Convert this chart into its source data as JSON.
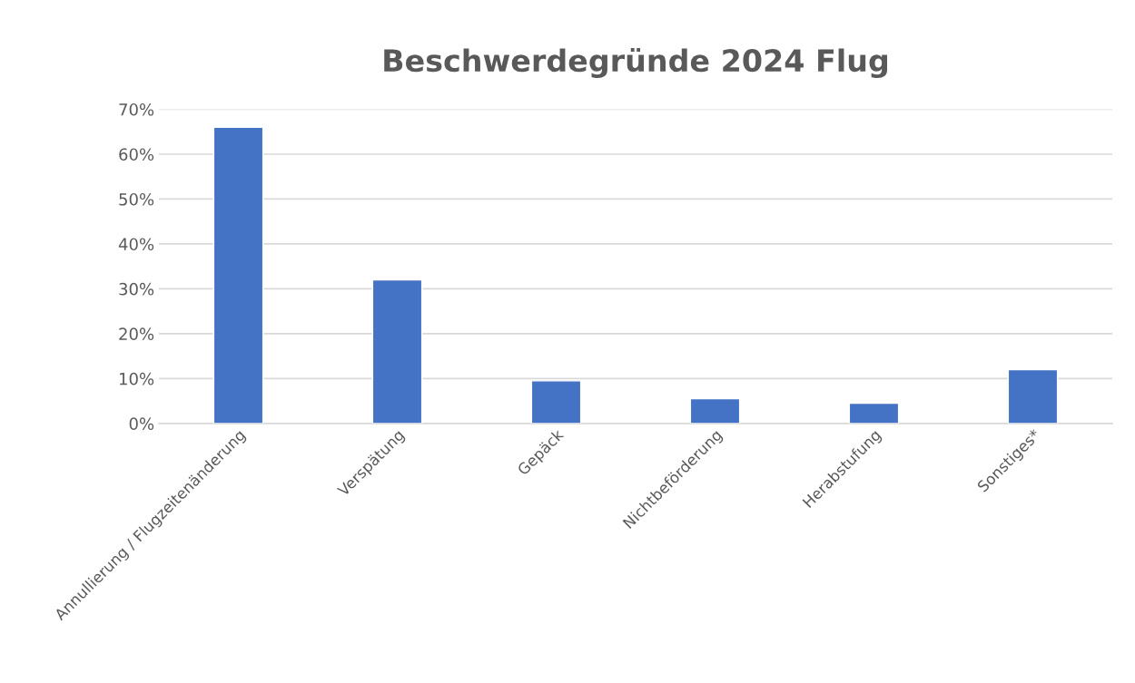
{
  "chart_data": {
    "type": "bar",
    "title": "Beschwerdegründe 2024 Flug",
    "categories": [
      "Annullierung / Flugzeitenänderung",
      "Verspätung",
      "Gepäck",
      "Nichtbeförderung",
      "Herabstufung",
      "Sonstiges*"
    ],
    "values": [
      66,
      32,
      9.5,
      5.5,
      4.5,
      12
    ],
    "color": "#4472c4",
    "ylim": [
      0,
      70
    ],
    "yticks": [
      {
        "value": 0,
        "label": "0%"
      },
      {
        "value": 10,
        "label": "10%"
      },
      {
        "value": 20,
        "label": "20%"
      },
      {
        "value": 30,
        "label": "30%"
      },
      {
        "value": 40,
        "label": "40%"
      },
      {
        "value": 50,
        "label": "50%"
      },
      {
        "value": 60,
        "label": "60%"
      },
      {
        "value": 70,
        "label": "70%"
      }
    ],
    "grid": "y",
    "legend": false
  }
}
